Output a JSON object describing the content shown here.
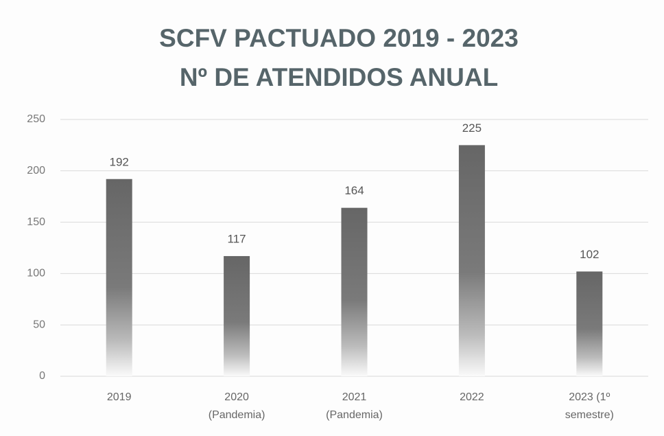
{
  "chart_data": {
    "type": "bar",
    "title": "SCFV PACTUADO 2019 - 2023",
    "subtitle": "Nº DE ATENDIDOS ANUAL",
    "categories": [
      "2019",
      "2020 (Pandemia)",
      "2021 (Pandemia)",
      "2022",
      "2023 (1º semestre)"
    ],
    "values": [
      192,
      117,
      164,
      225,
      102
    ],
    "color": "#666666",
    "ylim": [
      0,
      250
    ],
    "yticks": [
      0,
      50,
      100,
      150,
      200,
      250
    ],
    "grid": true
  }
}
